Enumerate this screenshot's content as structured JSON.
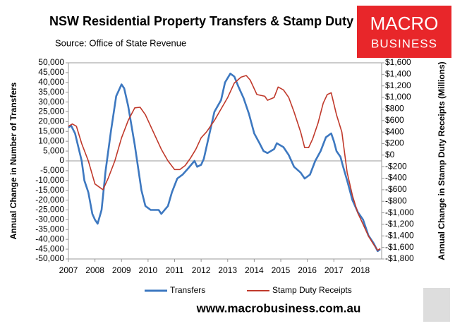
{
  "chart_data": {
    "type": "line",
    "title": "NSW Residential Property Transfers & Stamp Duty",
    "subtitle": "Source: Office of State Revenue",
    "ylabel": "Annual Change in Number of Transfers",
    "y2label": "Annual Change in Stamp Duty Receipts (Millions)",
    "xlim": [
      2007,
      2018.8
    ],
    "xticks": [
      2007,
      2008,
      2009,
      2010,
      2011,
      2012,
      2013,
      2014,
      2015,
      2016,
      2017,
      2018
    ],
    "ylim": [
      -50000,
      50000
    ],
    "yticks": [
      {
        "value": 50000,
        "label": "50,000"
      },
      {
        "value": 45000,
        "label": "45,000"
      },
      {
        "value": 40000,
        "label": "40,000"
      },
      {
        "value": 35000,
        "label": "35,000"
      },
      {
        "value": 30000,
        "label": "30,000"
      },
      {
        "value": 25000,
        "label": "25,000"
      },
      {
        "value": 20000,
        "label": "20,000"
      },
      {
        "value": 15000,
        "label": "15,000"
      },
      {
        "value": 10000,
        "label": "10,000"
      },
      {
        "value": 5000,
        "label": "5,000"
      },
      0,
      {
        "value": -5000,
        "label": "-5,000"
      },
      {
        "value": -10000,
        "label": "-10,000"
      },
      {
        "value": -15000,
        "label": "-15,000"
      },
      {
        "value": -20000,
        "label": "-20,000"
      },
      {
        "value": -25000,
        "label": "-25,000"
      },
      {
        "value": -30000,
        "label": "-30,000"
      },
      {
        "value": -35000,
        "label": "-35,000"
      },
      {
        "value": -40000,
        "label": "-40,000"
      },
      {
        "value": -45000,
        "label": "-45,000"
      },
      {
        "value": -50000,
        "label": "-50,000"
      }
    ],
    "y2lim": [
      -1800,
      1600
    ],
    "y2ticks": [
      {
        "value": 1600,
        "label": "$1,600"
      },
      {
        "value": 1400,
        "label": "$1,400"
      },
      {
        "value": 1200,
        "label": "$1,200"
      },
      {
        "value": 1000,
        "label": "$1,000"
      },
      {
        "value": 800,
        "label": "$800"
      },
      {
        "value": 600,
        "label": "$600"
      },
      {
        "value": 400,
        "label": "$400"
      },
      {
        "value": 200,
        "label": "$200"
      },
      {
        "value": 0,
        "label": "$0"
      },
      {
        "value": -200,
        "label": "-$200"
      },
      {
        "value": -400,
        "label": "-$400"
      },
      {
        "value": -600,
        "label": "-$600"
      },
      {
        "value": -800,
        "label": "-$800"
      },
      {
        "value": -1000,
        "label": "-$1,000"
      },
      {
        "value": -1200,
        "label": "-$1,200"
      },
      {
        "value": -1400,
        "label": "-$1,400"
      },
      {
        "value": -1600,
        "label": "-$1,600"
      },
      {
        "value": -1800,
        "label": "-$1,800"
      }
    ],
    "legend": "bottom",
    "series": [
      {
        "name": "Transfers",
        "color": "#3d78c0",
        "axis": "y",
        "x": [
          2007.0,
          2007.1,
          2007.25,
          2007.5,
          2007.6,
          2007.75,
          2007.9,
          2008.0,
          2008.1,
          2008.25,
          2008.4,
          2008.6,
          2008.8,
          2009.0,
          2009.1,
          2009.25,
          2009.5,
          2009.75,
          2009.9,
          2010.1,
          2010.4,
          2010.5,
          2010.75,
          2010.9,
          2011.1,
          2011.3,
          2011.5,
          2011.75,
          2011.85,
          2012.0,
          2012.1,
          2012.3,
          2012.5,
          2012.75,
          2012.9,
          2013.1,
          2013.25,
          2013.4,
          2013.6,
          2013.8,
          2014.0,
          2014.2,
          2014.35,
          2014.5,
          2014.75,
          2014.85,
          2015.1,
          2015.3,
          2015.5,
          2015.75,
          2015.9,
          2016.1,
          2016.3,
          2016.5,
          2016.7,
          2016.9,
          2017.0,
          2017.1,
          2017.25,
          2017.35,
          2017.5,
          2017.7,
          2017.9,
          2018.1,
          2018.3,
          2018.5,
          2018.65,
          2018.75
        ],
        "values": [
          17000,
          18000,
          14000,
          0,
          -10000,
          -16000,
          -27000,
          -30000,
          -32000,
          -25000,
          -5000,
          15000,
          33000,
          39000,
          37000,
          28000,
          8000,
          -15000,
          -23000,
          -25000,
          -25000,
          -27000,
          -23000,
          -16000,
          -9000,
          -7000,
          -4000,
          0,
          -3000,
          -2000,
          1000,
          13000,
          25000,
          31000,
          40000,
          44500,
          43000,
          38000,
          32000,
          24000,
          14000,
          9000,
          5000,
          4000,
          6000,
          9000,
          7000,
          3000,
          -3000,
          -6000,
          -9000,
          -7000,
          0,
          5000,
          12000,
          14000,
          10000,
          5000,
          2000,
          -3000,
          -10000,
          -20000,
          -26000,
          -30000,
          -38000,
          -42000,
          -46000,
          -45000
        ]
      },
      {
        "name": "Stamp Duty Receipts",
        "color": "#c0392b",
        "axis": "y2",
        "x": [
          2007.0,
          2007.15,
          2007.3,
          2007.5,
          2007.75,
          2008.0,
          2008.15,
          2008.3,
          2008.5,
          2008.75,
          2009.0,
          2009.25,
          2009.5,
          2009.7,
          2009.9,
          2010.2,
          2010.5,
          2010.75,
          2011.0,
          2011.2,
          2011.4,
          2011.6,
          2011.8,
          2012.0,
          2012.2,
          2012.5,
          2012.75,
          2013.0,
          2013.25,
          2013.5,
          2013.7,
          2013.85,
          2014.1,
          2014.4,
          2014.5,
          2014.75,
          2014.9,
          2015.1,
          2015.3,
          2015.5,
          2015.75,
          2015.9,
          2016.05,
          2016.2,
          2016.4,
          2016.6,
          2016.75,
          2016.9,
          2017.1,
          2017.3,
          2017.5,
          2017.7,
          2017.9,
          2018.1,
          2018.3,
          2018.5,
          2018.65,
          2018.75
        ],
        "values": [
          500,
          540,
          500,
          200,
          -100,
          -500,
          -550,
          -600,
          -400,
          -100,
          300,
          600,
          820,
          830,
          700,
          400,
          100,
          -100,
          -250,
          -250,
          -180,
          -50,
          100,
          300,
          400,
          600,
          800,
          1000,
          1250,
          1350,
          1380,
          1300,
          1050,
          1020,
          950,
          1000,
          1180,
          1130,
          1000,
          750,
          400,
          130,
          130,
          280,
          550,
          900,
          1050,
          1080,
          700,
          400,
          -300,
          -700,
          -1000,
          -1200,
          -1400,
          -1550,
          -1650,
          -1620
        ]
      }
    ]
  },
  "logo": {
    "line1": "MACRO",
    "line2": "BUSINESS"
  },
  "website": "www.macrobusiness.com.au"
}
